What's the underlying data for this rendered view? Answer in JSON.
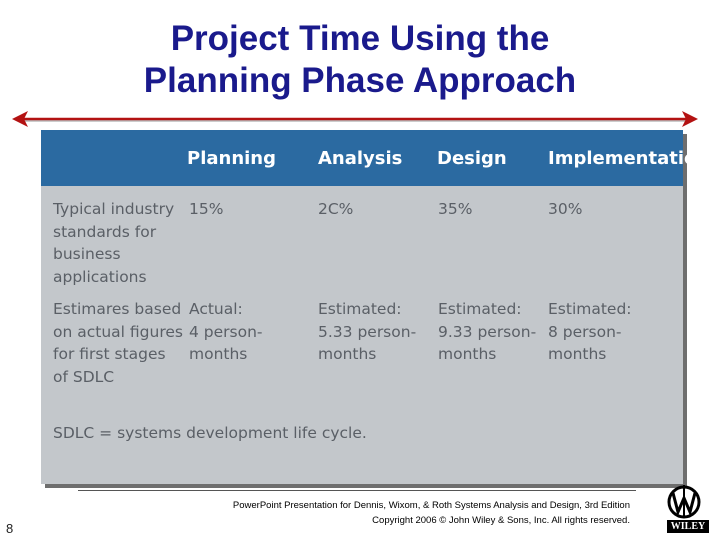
{
  "slide": {
    "title_line1": "Project Time Using the",
    "title_line2": "Planning Phase Approach",
    "page_number": "8"
  },
  "table": {
    "headers": [
      "Planning",
      "Analysis",
      "Design",
      "Implementation"
    ],
    "rows": [
      {
        "label": "Typical industry\n standards for\n business\n applications",
        "values": [
          "15%",
          "2C%",
          "35%",
          "30%"
        ]
      },
      {
        "label": "Estimares based\n on actual figures\n for first stages\n of SDLC",
        "values": [
          "Actual:\n 4 person-\n months",
          "Estimated:\n 5.33 person-\n months",
          "Estimated:\n 9.33 person-\n months",
          "Estimated:\n 8 person-\n months"
        ]
      }
    ],
    "footnote": "SDLC = systems development life cycle."
  },
  "footer": {
    "line1": "PowerPoint Presentation for Dennis, Wixom, & Roth Systems Analysis and Design, 3rd Edition",
    "line2": "Copyright 2006 © John Wiley & Sons, Inc.  All rights reserved."
  },
  "logo": {
    "text": "WILEY"
  },
  "colors": {
    "title": "#1a1a8c",
    "arrow": "#b31212",
    "table_header": "#2b6aa1",
    "table_body": "#c3c7cb",
    "table_text": "#5a5f66"
  }
}
